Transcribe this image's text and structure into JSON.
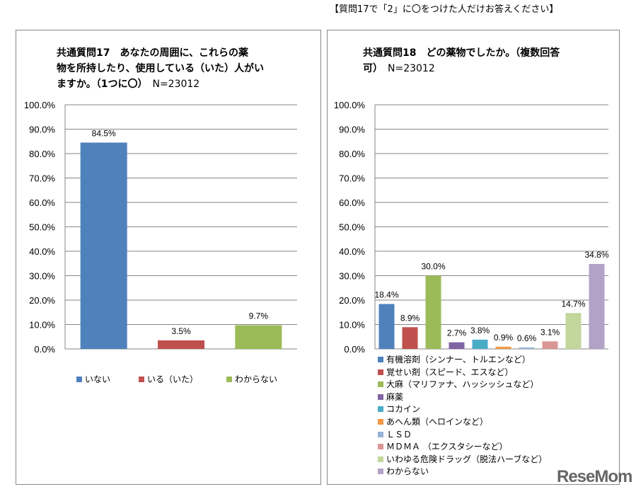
{
  "note": "【質問17で「2」に〇をつけた人だけお答えください】",
  "logo": "ReseMom",
  "chart_data": [
    {
      "type": "bar",
      "title": "共通質問17 あなたの周囲に、これらの薬物を所持したり、使用している(いた)人がいますか。(1つに〇)",
      "title_lines": [
        "共通質問17　あなたの周囲に、これらの薬",
        "物を所持したり、使用している（いた）人がい",
        "ますか。（1つに〇）"
      ],
      "n_label": "N=23012",
      "categories": [
        "いない",
        "いる（いた）",
        "わからない"
      ],
      "values": [
        84.5,
        3.5,
        9.7
      ],
      "labels": [
        "84.5%",
        "3.5%",
        "9.7%"
      ],
      "colors": [
        "#4f81bd",
        "#c0504d",
        "#9bbb59"
      ],
      "ylim": [
        0,
        100
      ],
      "yticks": [
        "0.0%",
        "10.0%",
        "20.0%",
        "30.0%",
        "40.0%",
        "50.0%",
        "60.0%",
        "70.0%",
        "80.0%",
        "90.0%",
        "100.0%"
      ],
      "legend": "bottom",
      "grid": true
    },
    {
      "type": "bar",
      "title": "共通質問18 どの薬物でしたか。(複数回答可)",
      "title_lines": [
        "共通質問18　どの薬物でしたか。（複数回答",
        "可）"
      ],
      "n_label": "N=23012",
      "categories": [
        "有機溶剤（シンナー、トルエンなど）",
        "覚せい剤（スピード、エスなど）",
        "大麻（マリファナ、ハッシッシュなど）",
        "麻薬",
        "コカイン",
        "あへん類（ヘロインなど）",
        "ＬＳＤ",
        "ＭＤＭＡ （エクスタシーなど）",
        "いわゆる危険ドラッグ（脱法ハーブなど）",
        "わからない"
      ],
      "values": [
        18.4,
        8.9,
        30.0,
        2.7,
        3.8,
        0.9,
        0.6,
        3.1,
        14.7,
        34.8
      ],
      "labels": [
        "18.4%",
        "8.9%",
        "30.0%",
        "2.7%",
        "3.8%",
        "0.9%",
        "0.6%",
        "3.1%",
        "14.7%",
        "34.8%"
      ],
      "colors": [
        "#4f81bd",
        "#c0504d",
        "#9bbb59",
        "#8064a2",
        "#4bacc6",
        "#f79646",
        "#95b3d7",
        "#d99694",
        "#c3d69b",
        "#b2a2c7"
      ],
      "ylim": [
        0,
        100
      ],
      "yticks": [
        "0.0%",
        "10.0%",
        "20.0%",
        "30.0%",
        "40.0%",
        "50.0%",
        "60.0%",
        "70.0%",
        "80.0%",
        "90.0%",
        "100.0%"
      ],
      "legend": "bottom",
      "grid": true
    }
  ]
}
